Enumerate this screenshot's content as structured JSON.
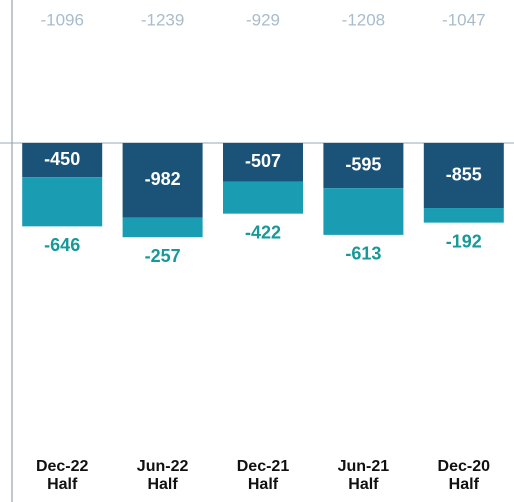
{
  "chart_data": {
    "type": "stacked-bar",
    "categories": [
      "Dec-22 Half",
      "Jun-22 Half",
      "Dec-21 Half",
      "Jun-21 Half",
      "Dec-20 Half"
    ],
    "totals": [
      -1096,
      -1239,
      -929,
      -1208,
      -1047
    ],
    "series": [
      {
        "color": "#1b5378",
        "values": [
          -450,
          -982,
          -507,
          -595,
          -855
        ]
      },
      {
        "color": "#1a9db3",
        "values": [
          -646,
          -257,
          -422,
          -613,
          -192
        ]
      }
    ],
    "label_colors": [
      "#ffffff",
      "#17999a"
    ],
    "total_color": "#a8bccb",
    "ylim": [
      -4720,
      1880
    ]
  }
}
